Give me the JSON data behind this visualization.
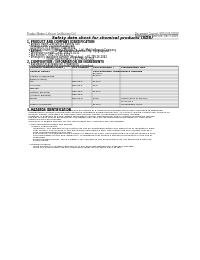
{
  "bg_color": "#ffffff",
  "header_left": "Product Name: Lithium Ion Battery Cell",
  "header_right_line1": "Document Control: SDS-049-00010",
  "header_right_line2": "Established / Revision: Dec.7.2016",
  "title": "Safety data sheet for chemical products (SDS)",
  "section1_title": "1. PRODUCT AND COMPANY IDENTIFICATION",
  "section1_lines": [
    "  • Product name: Lithium Ion Battery Cell",
    "  • Product code: Cylindrical-type cell",
    "    014186600, 014186500, 014186504",
    "  • Company name:     Sanyo Electric Co., Ltd., Mobile Energy Company",
    "  • Address:             2001, Kamikosaka, Sumoto-City, Hyogo, Japan",
    "  • Telephone number:   +81-799-26-4111",
    "  • Fax number:  +81-799-26-4129",
    "  • Emergency telephone number (Weekday): +81-799-26-2042",
    "                          (Night and holiday): +81-799-26-2101"
  ],
  "section2_title": "2. COMPOSITION / INFORMATION ON INGREDIENTS",
  "section2_lines": [
    "  • Substance or preparation: Preparation",
    "  • Information about the chemical nature of product:"
  ],
  "table_col_headers_row1": [
    "Common chemical name /",
    "CAS number",
    "Concentration /",
    "Classification and"
  ],
  "table_col_headers_row2": [
    "Several names",
    "",
    "Concentration range",
    "hazard labeling"
  ],
  "table_col_headers_row2b": [
    "",
    "",
    "(50-60%)",
    ""
  ],
  "table_rows": [
    [
      "Lithium oxide/carbide",
      "-",
      "50-60%",
      "-"
    ],
    [
      "(LiMnxCoyNiO2)",
      "",
      "",
      ""
    ],
    [
      "Iron",
      "7439-89-6",
      "15-20%",
      "-"
    ],
    [
      "Aluminum",
      "7429-90-5",
      "2-5%",
      "-"
    ],
    [
      "Graphite",
      "",
      "",
      ""
    ],
    [
      "(Natural graphite)",
      "7782-42-5",
      "10-20%",
      "-"
    ],
    [
      "(Artificial graphite)",
      "7782-42-5",
      "",
      "-"
    ],
    [
      "Copper",
      "7440-50-8",
      "5-10%",
      "Sensitization of the skin"
    ],
    [
      "",
      "",
      "",
      "group No.2"
    ],
    [
      "Organic electrolyte",
      "-",
      "10-20%",
      "Inflammable liquid"
    ]
  ],
  "section3_title": "3. HAZARDS IDENTIFICATION",
  "section3_text": [
    "  For this battery cell, chemical substances are stored in a hermetically-sealed metal case, designed to withstand",
    "  temperature changes and pressure-sensitive conditions during normal use. As a result, during normal use, there is no",
    "  physical danger of ignition or explosion and thermal-danger of hazardous materials leakage.",
    "  However, if exposed to a fire, added mechanical shocks, decomposed, and/or electro-shorted my misuse,",
    "  the gas release cannot be operated. The battery cell case will be breached of fire-patterns, hazardous",
    "  materials may be released.",
    "  Moreover, if heated strongly by the surrounding fire, some gas may be emitted.",
    "",
    "  • Most important hazard and effects:",
    "      Human health effects:",
    "        Inhalation: The release of the electrolyte has an anesthesia-action and stimulates in respiratory tract.",
    "        Skin contact: The release of the electrolyte stimulates a skin. The electrolyte skin contact causes a",
    "        sore and stimulation on the skin.",
    "        Eye contact: The release of the electrolyte stimulates eyes. The electrolyte eye contact causes a sore",
    "        and stimulation on the eye. Especially, a substance that causes a strong inflammation of the eye is",
    "        contained.",
    "        Environmental effects: Since a battery cell remains in the environment, do not throw out it into the",
    "        environment.",
    "",
    "  • Specific hazards:",
    "        If the electrolyte contacts with water, it will generate detrimental hydrogen fluoride.",
    "        Since the used electrolyte is inflammable liquid, do not bring close to fire."
  ]
}
